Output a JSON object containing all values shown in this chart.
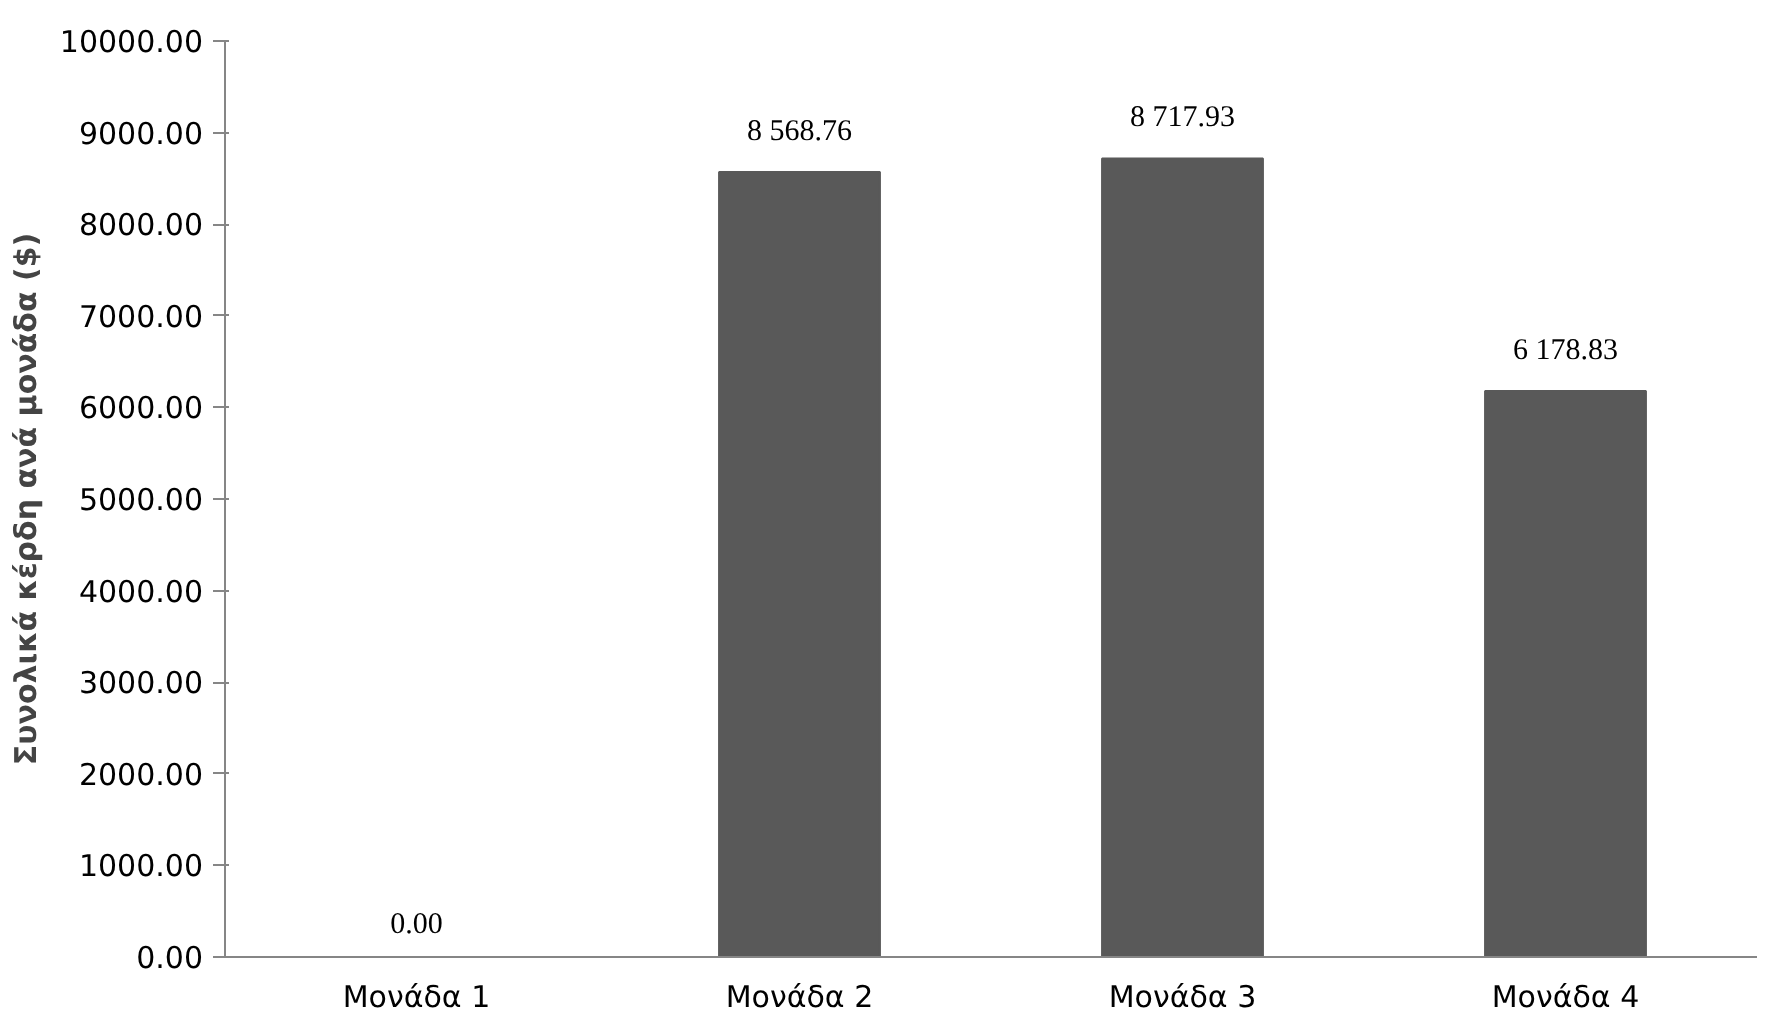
{
  "chart_data": {
    "type": "bar",
    "ylabel": "Συνολικά κέρδη ανά μονάδα ($)",
    "categories": [
      "Μονάδα 1",
      "Μονάδα 2",
      "Μονάδα 3",
      "Μονάδα 4"
    ],
    "values": [
      0,
      8568.76,
      8717.93,
      6178.83
    ],
    "value_labels": [
      "0.00",
      "8 568.76",
      "8 717.93",
      "6 178.83"
    ],
    "color": "#595959",
    "ylim": [
      0,
      10000
    ],
    "yticks": [
      {
        "value": 0,
        "label": "0.00"
      },
      {
        "value": 1000,
        "label": "1000.00"
      },
      {
        "value": 2000,
        "label": "2000.00"
      },
      {
        "value": 3000,
        "label": "3000.00"
      },
      {
        "value": 4000,
        "label": "4000.00"
      },
      {
        "value": 5000,
        "label": "5000.00"
      },
      {
        "value": 6000,
        "label": "6000.00"
      },
      {
        "value": 7000,
        "label": "7000.00"
      },
      {
        "value": 8000,
        "label": "8000.00"
      },
      {
        "value": 9000,
        "label": "9000.00"
      },
      {
        "value": 10000,
        "label": "10000.00"
      }
    ],
    "grid": false
  }
}
